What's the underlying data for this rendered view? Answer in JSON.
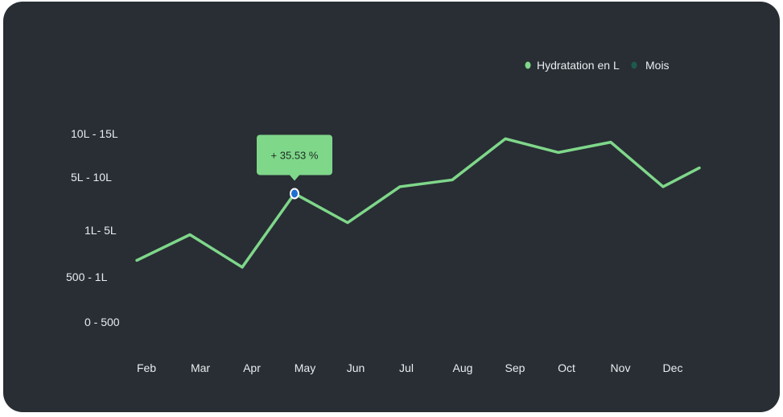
{
  "chart_data": {
    "type": "line",
    "categories": [
      "Feb",
      "Mar",
      "Apr",
      "May",
      "Jun",
      "Jul",
      "Aug",
      "Sep",
      "Oct",
      "Nov",
      "Dec",
      ""
    ],
    "series": [
      {
        "name": "Hydratation en L",
        "values": [
          1.8,
          2.55,
          1.6,
          3.75,
          2.9,
          3.95,
          4.15,
          5.35,
          4.95,
          5.25,
          3.95,
          4.5
        ]
      }
    ],
    "y_levels": [
      "0 - 500",
      "500 - 1L",
      "1L- 5L",
      "5L - 10L",
      "10L - 15L"
    ],
    "ylim": [
      0,
      5.5
    ],
    "legend": {
      "items": [
        {
          "label": "Hydratation en L",
          "color": "#7fd78a"
        },
        {
          "label": "Mois",
          "color": "#1e5a4c"
        }
      ],
      "position": "top-right"
    },
    "tooltip": {
      "text": "+ 35.53 %",
      "index": 3
    },
    "grid": false
  },
  "colors": {
    "background": "#282e34",
    "line": "#7fd78a",
    "tooltip_bg": "#7fd78a",
    "marker": "#1f6fd1"
  }
}
